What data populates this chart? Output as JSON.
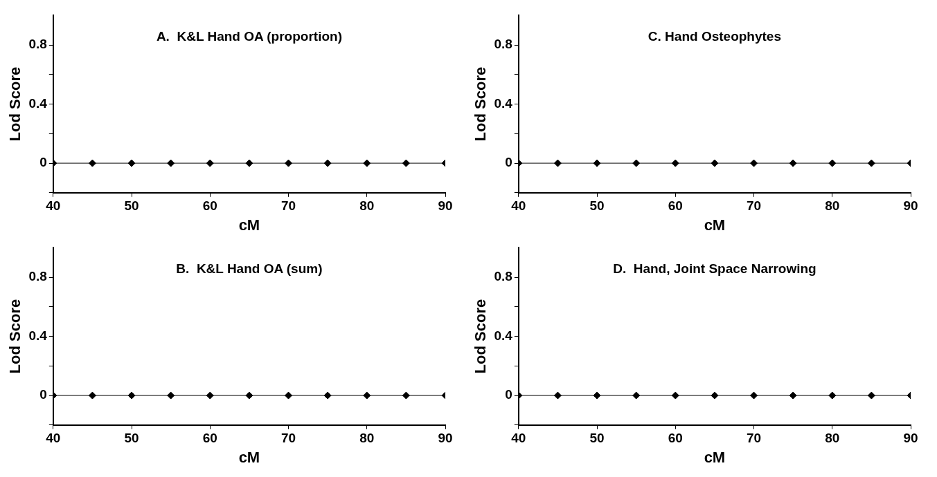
{
  "chart_data": [
    {
      "type": "line",
      "title": "A.  K&L Hand OA (proportion)",
      "xlabel": "cM",
      "ylabel": "Lod Score",
      "x": [
        40,
        45,
        50,
        55,
        60,
        65,
        70,
        75,
        80,
        85,
        90
      ],
      "series": [
        {
          "color": "#000000",
          "values": [
            0,
            0,
            0,
            0,
            0,
            0,
            0,
            0,
            0,
            0,
            0
          ]
        }
      ],
      "xlim": [
        40,
        90
      ],
      "xticks": [
        40,
        50,
        60,
        70,
        80,
        90
      ],
      "ylim": [
        -0.2,
        1
      ],
      "yticks": [
        {
          "value": -0.2,
          "label": null
        },
        0,
        {
          "value": 0.2,
          "label": null
        },
        0.4,
        {
          "value": 0.6,
          "label": null
        },
        0.8
      ],
      "grid": false,
      "legend": false,
      "marker": "diamond",
      "line_style": "solid"
    },
    {
      "type": "line",
      "title": "C. Hand Osteophytes",
      "xlabel": "cM",
      "ylabel": "Lod Score",
      "x": [
        40,
        45,
        50,
        55,
        60,
        65,
        70,
        75,
        80,
        85,
        90
      ],
      "series": [
        {
          "color": "#000000",
          "values": [
            0,
            0,
            0,
            0,
            0,
            0,
            0,
            0,
            0,
            0,
            0
          ]
        }
      ],
      "xlim": [
        40,
        90
      ],
      "xticks": [
        40,
        50,
        60,
        70,
        80,
        90
      ],
      "ylim": [
        -0.2,
        1
      ],
      "yticks": [
        {
          "value": -0.2,
          "label": null
        },
        0,
        {
          "value": 0.2,
          "label": null
        },
        0.4,
        {
          "value": 0.6,
          "label": null
        },
        0.8
      ],
      "grid": false,
      "legend": false,
      "marker": "diamond",
      "line_style": "solid"
    },
    {
      "type": "line",
      "title": "B.  K&L Hand OA (sum)",
      "xlabel": "cM",
      "ylabel": "Lod Score",
      "x": [
        40,
        45,
        50,
        55,
        60,
        65,
        70,
        75,
        80,
        85,
        90
      ],
      "series": [
        {
          "color": "#000000",
          "values": [
            0,
            0,
            0,
            0,
            0,
            0,
            0,
            0,
            0,
            0,
            0
          ]
        }
      ],
      "xlim": [
        40,
        90
      ],
      "xticks": [
        40,
        50,
        60,
        70,
        80,
        90
      ],
      "ylim": [
        -0.2,
        1
      ],
      "yticks": [
        {
          "value": -0.2,
          "label": null
        },
        0,
        {
          "value": 0.2,
          "label": null
        },
        0.4,
        {
          "value": 0.6,
          "label": null
        },
        0.8
      ],
      "grid": false,
      "legend": false,
      "marker": "diamond",
      "line_style": "solid"
    },
    {
      "type": "line",
      "title": "D.  Hand, Joint Space Narrowing",
      "xlabel": "cM",
      "ylabel": "Lod Score",
      "x": [
        40,
        45,
        50,
        55,
        60,
        65,
        70,
        75,
        80,
        85,
        90
      ],
      "series": [
        {
          "color": "#000000",
          "values": [
            0,
            0,
            0,
            0,
            0,
            0,
            0,
            0,
            0,
            0,
            0
          ]
        }
      ],
      "xlim": [
        40,
        90
      ],
      "xticks": [
        40,
        50,
        60,
        70,
        80,
        90
      ],
      "ylim": [
        -0.2,
        1
      ],
      "yticks": [
        {
          "value": -0.2,
          "label": null
        },
        0,
        {
          "value": 0.2,
          "label": null
        },
        0.4,
        {
          "value": 0.6,
          "label": null
        },
        0.8
      ],
      "grid": false,
      "legend": false,
      "marker": "diamond",
      "line_style": "solid"
    }
  ]
}
